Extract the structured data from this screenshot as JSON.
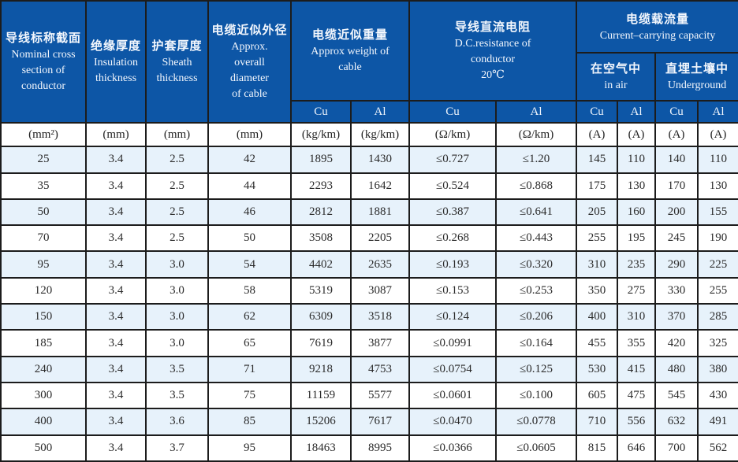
{
  "table": {
    "header": {
      "nominal": {
        "zh": "导线标称截面",
        "en": "Nominal cross section of conductor"
      },
      "insulation": {
        "zh": "绝缘厚度",
        "en": "Insulation thickness"
      },
      "sheath": {
        "zh": "护套厚度",
        "en": "Sheath thickness"
      },
      "diameter": {
        "zh": "电缆近似外径",
        "en": "Approx. overall diameter of cable"
      },
      "weight": {
        "zh": "电缆近似重量",
        "en": "Approx weight of cable"
      },
      "resistance": {
        "zh": "导线直流电阻",
        "en": "D.C.resistance of conductor",
        "temp": "20℃"
      },
      "capacity": {
        "zh": "电缆载流量",
        "en": "Current–carrying capacity"
      },
      "in_air": {
        "zh": "在空气中",
        "en": "in air"
      },
      "underground": {
        "zh": "直埋土壤中",
        "en": "Underground"
      },
      "subheaders": [
        "Cu",
        "Al",
        "Cu",
        "Al",
        "Cu",
        "Al",
        "Cu",
        "Al"
      ]
    },
    "units": [
      "(mm²)",
      "(mm)",
      "(mm)",
      "(mm)",
      "(kg/km)",
      "(kg/km)",
      "(Ω/km)",
      "(Ω/km)",
      "(A)",
      "(A)",
      "(A)",
      "(A)"
    ],
    "rows": [
      [
        "25",
        "3.4",
        "2.5",
        "42",
        "1895",
        "1430",
        "≤0.727",
        "≤1.20",
        "145",
        "110",
        "140",
        "110"
      ],
      [
        "35",
        "3.4",
        "2.5",
        "44",
        "2293",
        "1642",
        "≤0.524",
        "≤0.868",
        "175",
        "130",
        "170",
        "130"
      ],
      [
        "50",
        "3.4",
        "2.5",
        "46",
        "2812",
        "1881",
        "≤0.387",
        "≤0.641",
        "205",
        "160",
        "200",
        "155"
      ],
      [
        "70",
        "3.4",
        "2.5",
        "50",
        "3508",
        "2205",
        "≤0.268",
        "≤0.443",
        "255",
        "195",
        "245",
        "190"
      ],
      [
        "95",
        "3.4",
        "3.0",
        "54",
        "4402",
        "2635",
        "≤0.193",
        "≤0.320",
        "310",
        "235",
        "290",
        "225"
      ],
      [
        "120",
        "3.4",
        "3.0",
        "58",
        "5319",
        "3087",
        "≤0.153",
        "≤0.253",
        "350",
        "275",
        "330",
        "255"
      ],
      [
        "150",
        "3.4",
        "3.0",
        "62",
        "6309",
        "3518",
        "≤0.124",
        "≤0.206",
        "400",
        "310",
        "370",
        "285"
      ],
      [
        "185",
        "3.4",
        "3.0",
        "65",
        "7619",
        "3877",
        "≤0.0991",
        "≤0.164",
        "455",
        "355",
        "420",
        "325"
      ],
      [
        "240",
        "3.4",
        "3.5",
        "71",
        "9218",
        "4753",
        "≤0.0754",
        "≤0.125",
        "530",
        "415",
        "480",
        "380"
      ],
      [
        "300",
        "3.4",
        "3.5",
        "75",
        "11159",
        "5577",
        "≤0.0601",
        "≤0.100",
        "605",
        "475",
        "545",
        "430"
      ],
      [
        "400",
        "3.4",
        "3.6",
        "85",
        "15206",
        "7617",
        "≤0.0470",
        "≤0.0778",
        "710",
        "556",
        "632",
        "491"
      ],
      [
        "500",
        "3.4",
        "3.7",
        "95",
        "18463",
        "8995",
        "≤0.0366",
        "≤0.0605",
        "815",
        "646",
        "700",
        "562"
      ]
    ]
  },
  "colors": {
    "header_blue": "#0d56a6",
    "row_alt_blue": "#e7f2fb",
    "border": "#1c1c1c"
  }
}
